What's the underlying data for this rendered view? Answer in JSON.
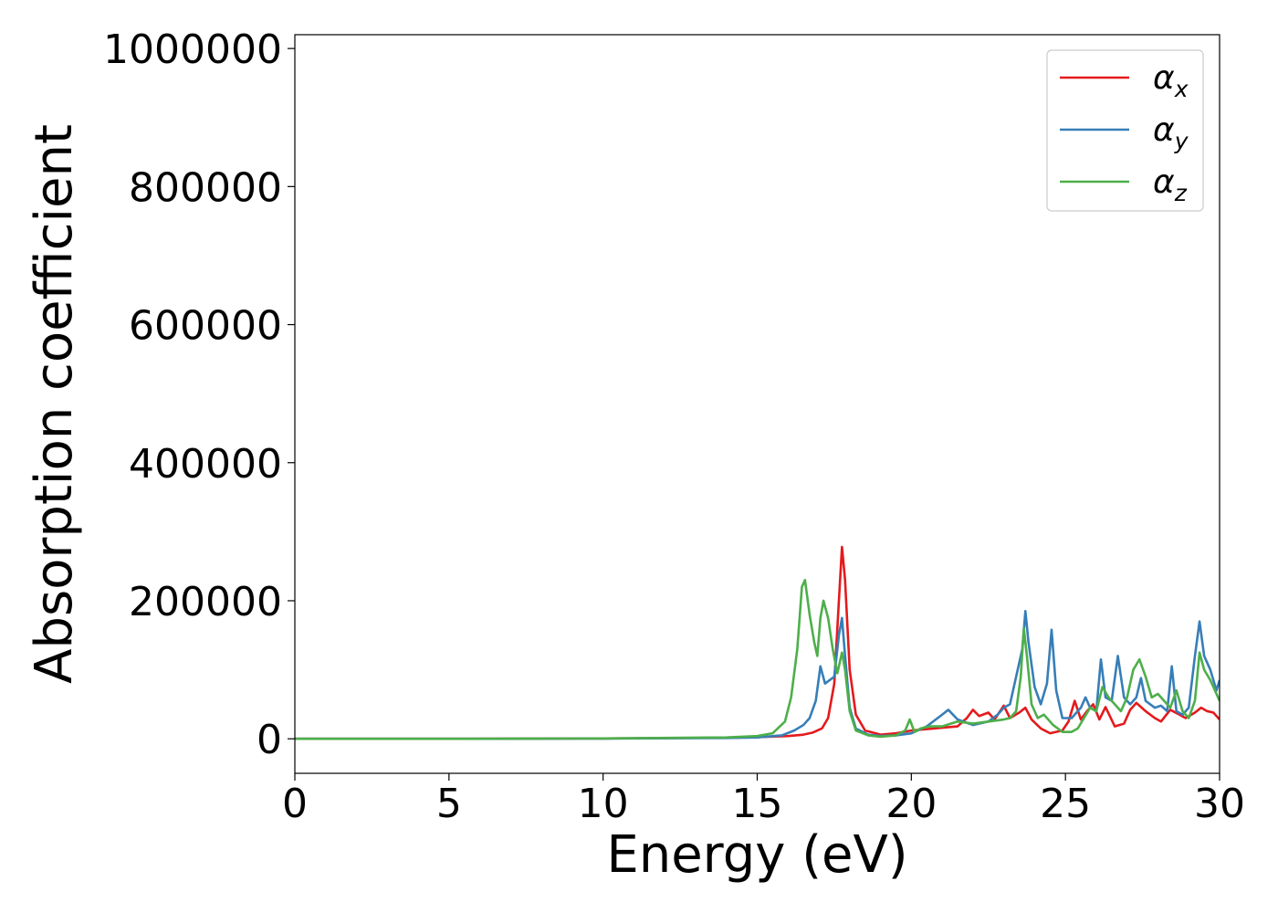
{
  "chart_data": {
    "type": "line",
    "title": "",
    "xlabel": "Energy (eV)",
    "ylabel": "Absorption coefficient",
    "xlim": [
      0,
      30
    ],
    "ylim": [
      -50000,
      1020000
    ],
    "xticks": [
      0,
      5,
      10,
      15,
      20,
      25,
      30
    ],
    "xtick_labels": [
      "0",
      "5",
      "10",
      "15",
      "20",
      "25",
      "30"
    ],
    "yticks": [
      0,
      200000,
      400000,
      600000,
      800000,
      1000000
    ],
    "ytick_labels": [
      "0",
      "200000",
      "400000",
      "600000",
      "800000",
      "1000000"
    ],
    "grid": false,
    "legend_position": "upper right",
    "series": [
      {
        "name": "αx",
        "legend_base": "α",
        "legend_sub": "x",
        "color": "#e41a1c",
        "x": [
          0,
          5,
          10,
          14,
          15,
          16,
          16.5,
          16.8,
          17.1,
          17.3,
          17.5,
          17.65,
          17.75,
          17.85,
          18.0,
          18.2,
          18.5,
          19.0,
          19.5,
          20.0,
          20.5,
          21.0,
          21.5,
          21.8,
          22.0,
          22.2,
          22.5,
          22.7,
          23.0,
          23.2,
          23.5,
          23.7,
          23.9,
          24.2,
          24.5,
          24.9,
          25.1,
          25.3,
          25.5,
          25.7,
          25.9,
          26.1,
          26.3,
          26.6,
          26.9,
          27.1,
          27.3,
          27.6,
          27.9,
          28.1,
          28.4,
          28.7,
          28.9,
          29.2,
          29.4,
          29.6,
          29.8,
          30.0
        ],
        "y": [
          0,
          0,
          500,
          1500,
          2500,
          4000,
          6000,
          9000,
          15000,
          30000,
          80000,
          200000,
          278000,
          230000,
          100000,
          35000,
          12000,
          6000,
          8000,
          12000,
          14000,
          16000,
          18000,
          30000,
          42000,
          33000,
          38000,
          28000,
          48000,
          30000,
          38000,
          45000,
          28000,
          15000,
          8000,
          12000,
          25000,
          55000,
          28000,
          40000,
          50000,
          28000,
          46000,
          18000,
          22000,
          42000,
          52000,
          40000,
          30000,
          25000,
          42000,
          35000,
          30000,
          38000,
          45000,
          40000,
          38000,
          28000
        ]
      },
      {
        "name": "αy",
        "legend_base": "α",
        "legend_sub": "y",
        "color": "#377eb8",
        "x": [
          0,
          5,
          10,
          14,
          15,
          15.8,
          16.2,
          16.5,
          16.7,
          16.9,
          17.05,
          17.2,
          17.35,
          17.5,
          17.65,
          17.75,
          17.85,
          18.0,
          18.2,
          18.6,
          19.0,
          19.5,
          20.0,
          20.5,
          21.0,
          21.2,
          21.5,
          22.0,
          22.5,
          22.8,
          23.0,
          23.2,
          23.4,
          23.6,
          23.7,
          23.8,
          24.0,
          24.2,
          24.4,
          24.55,
          24.7,
          24.9,
          25.2,
          25.5,
          25.65,
          25.8,
          26.0,
          26.15,
          26.3,
          26.5,
          26.7,
          26.9,
          27.1,
          27.3,
          27.45,
          27.6,
          27.9,
          28.1,
          28.3,
          28.45,
          28.6,
          28.8,
          29.0,
          29.2,
          29.35,
          29.5,
          29.7,
          29.9,
          30.0
        ],
        "y": [
          0,
          0,
          300,
          1200,
          2000,
          5000,
          12000,
          20000,
          30000,
          55000,
          105000,
          80000,
          85000,
          90000,
          150000,
          175000,
          120000,
          45000,
          15000,
          6000,
          4000,
          5000,
          8000,
          18000,
          35000,
          42000,
          28000,
          20000,
          25000,
          35000,
          45000,
          50000,
          90000,
          130000,
          185000,
          140000,
          75000,
          50000,
          80000,
          158000,
          70000,
          30000,
          30000,
          45000,
          60000,
          45000,
          40000,
          115000,
          60000,
          55000,
          120000,
          60000,
          50000,
          60000,
          88000,
          55000,
          45000,
          48000,
          40000,
          105000,
          40000,
          35000,
          45000,
          120000,
          170000,
          120000,
          100000,
          70000,
          85000
        ]
      },
      {
        "name": "αz",
        "legend_base": "α",
        "legend_sub": "z",
        "color": "#4daf4a",
        "x": [
          0,
          5,
          10,
          14,
          15,
          15.5,
          15.9,
          16.1,
          16.3,
          16.45,
          16.55,
          16.7,
          16.85,
          16.95,
          17.05,
          17.15,
          17.3,
          17.45,
          17.6,
          17.75,
          17.85,
          18.0,
          18.2,
          18.6,
          19.0,
          19.5,
          19.8,
          19.95,
          20.1,
          20.3,
          20.6,
          21.0,
          21.5,
          22.0,
          22.5,
          23.0,
          23.2,
          23.4,
          23.55,
          23.65,
          23.75,
          23.9,
          24.1,
          24.3,
          24.6,
          24.9,
          25.2,
          25.4,
          25.6,
          25.8,
          26.0,
          26.2,
          26.4,
          26.6,
          26.8,
          27.0,
          27.2,
          27.4,
          27.6,
          27.8,
          28.0,
          28.2,
          28.4,
          28.6,
          28.8,
          29.0,
          29.2,
          29.35,
          29.5,
          29.7,
          29.9,
          30.0
        ],
        "y": [
          0,
          0,
          500,
          2000,
          4000,
          8000,
          25000,
          60000,
          130000,
          220000,
          230000,
          180000,
          140000,
          120000,
          175000,
          200000,
          175000,
          130000,
          95000,
          125000,
          100000,
          40000,
          12000,
          5000,
          3000,
          5000,
          12000,
          28000,
          10000,
          15000,
          18000,
          18000,
          25000,
          22000,
          25000,
          28000,
          30000,
          40000,
          90000,
          160000,
          120000,
          50000,
          30000,
          35000,
          20000,
          10000,
          10000,
          15000,
          30000,
          45000,
          40000,
          75000,
          60000,
          50000,
          40000,
          60000,
          100000,
          115000,
          90000,
          60000,
          65000,
          55000,
          45000,
          70000,
          40000,
          30000,
          55000,
          125000,
          100000,
          85000,
          65000,
          55000
        ]
      }
    ]
  }
}
